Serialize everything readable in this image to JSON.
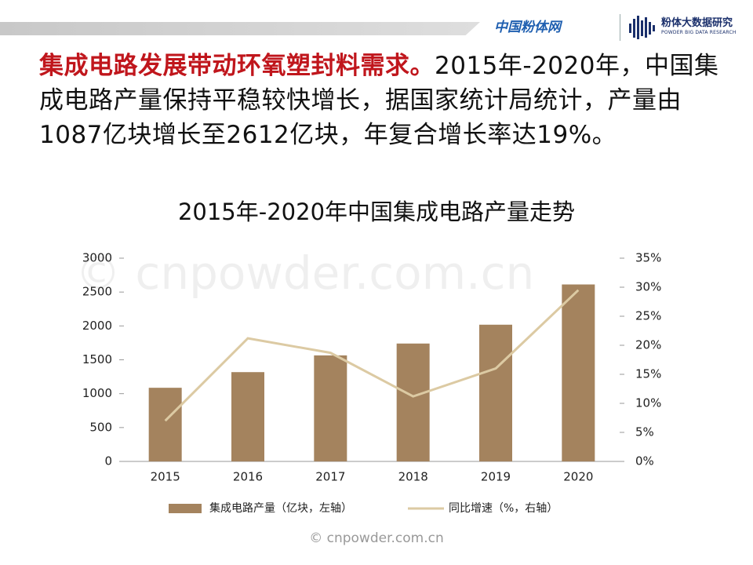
{
  "header": {
    "logo_main": "中国粉体网",
    "logo_research": "粉体大数据研究",
    "logo_research_sub": "POWDER BIG DATA RESEARCH"
  },
  "text": {
    "highlight": "集成电路发展带动环氧塑封料需求。",
    "body": "2015年-2020年，中国集成电路产量保持平稳较快增长，据国家统计局统计，产量由1087亿块增长至2612亿块，年复合增长率达19%。"
  },
  "watermark": "© cnpowder.com.cn",
  "chart_data": {
    "type": "bar",
    "title": "2015年-2020年中国集成电路产量走势",
    "categories": [
      "2015",
      "2016",
      "2017",
      "2018",
      "2019",
      "2020"
    ],
    "series": [
      {
        "name": "集成电路产量（亿块，左轴）",
        "type": "bar",
        "color": "#a4835e",
        "values": [
          1087,
          1318,
          1565,
          1740,
          2018,
          2612
        ]
      },
      {
        "name": "同比增速（%，右轴）",
        "type": "line",
        "axis": "y2",
        "color": "#dccaa3",
        "values": [
          7,
          21.2,
          18.7,
          11.2,
          16,
          29.5
        ]
      }
    ],
    "ylim": [
      0,
      3000
    ],
    "yticks": [
      0,
      500,
      1000,
      1500,
      2000,
      2500,
      3000
    ],
    "y2lim": [
      0,
      35
    ],
    "y2ticks": [
      {
        "value": 0,
        "label": "0%"
      },
      {
        "value": 5,
        "label": "5%"
      },
      {
        "value": 10,
        "label": "10%"
      },
      {
        "value": 15,
        "label": "15%"
      },
      {
        "value": 20,
        "label": "20%"
      },
      {
        "value": 25,
        "label": "25%"
      },
      {
        "value": 30,
        "label": "30%"
      },
      {
        "value": 35,
        "label": "35%"
      }
    ],
    "grid": false,
    "legend": "bottom"
  }
}
